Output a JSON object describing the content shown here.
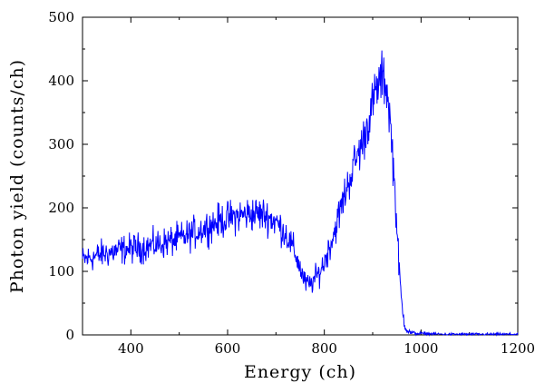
{
  "chart_data": {
    "type": "line",
    "title": "",
    "xlabel": "Energy (ch)",
    "ylabel": "Photon yield (counts/ch)",
    "xlim": [
      300,
      1200
    ],
    "ylim": [
      0,
      500
    ],
    "x_ticks": [
      400,
      600,
      800,
      1000,
      1200
    ],
    "x_tick_labels": [
      "400",
      "600",
      "800",
      "1000",
      "1200"
    ],
    "y_ticks": [
      0,
      100,
      200,
      300,
      400,
      500
    ],
    "y_tick_labels": [
      "0",
      "100",
      "200",
      "300",
      "400",
      "500"
    ],
    "grid": false,
    "legend": "none",
    "line_color": "#0000ff",
    "series": [
      {
        "x": [
          300,
          320,
          340,
          360,
          380,
          400,
          420,
          440,
          460,
          480,
          500,
          520,
          540,
          560,
          580,
          600,
          620,
          640,
          660,
          680,
          700,
          720,
          740,
          750,
          760,
          770,
          780,
          790,
          800,
          820,
          840,
          860,
          880,
          895,
          905,
          915,
          922,
          930,
          938,
          945,
          950,
          955,
          960,
          965,
          970,
          980,
          1000,
          1050,
          1100,
          1150,
          1200
        ],
        "y": [
          118,
          122,
          127,
          130,
          134,
          136,
          137,
          140,
          143,
          147,
          151,
          157,
          164,
          171,
          178,
          183,
          187,
          190,
          191,
          188,
          178,
          160,
          128,
          105,
          82,
          78,
          88,
          98,
          115,
          160,
          215,
          265,
          305,
          348,
          378,
          400,
          405,
          385,
          320,
          240,
          170,
          100,
          50,
          20,
          8,
          3,
          2,
          1,
          1,
          1,
          1
        ]
      }
    ]
  }
}
